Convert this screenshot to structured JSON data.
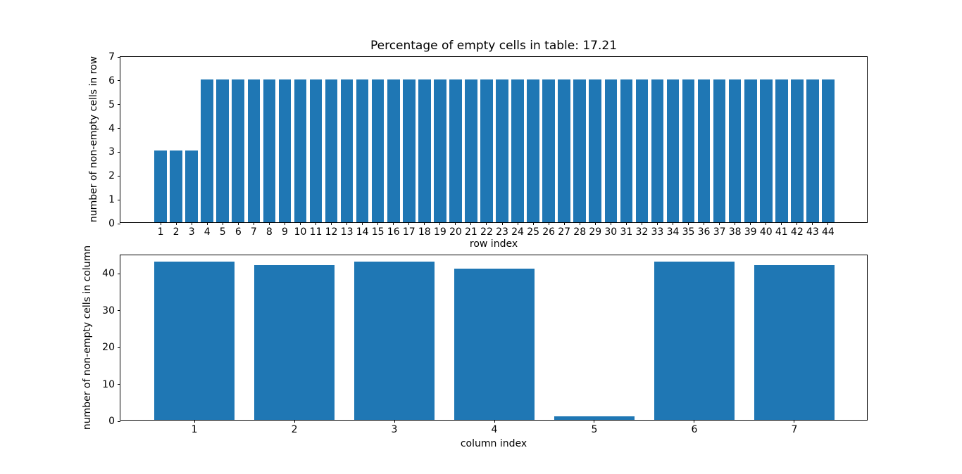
{
  "figure": {
    "background_color": "#ffffff",
    "bar_color": "#1f77b4",
    "axis_color": "#000000"
  },
  "chart_data": [
    {
      "type": "bar",
      "title": "Percentage of empty cells in table: 17.21",
      "xlabel": "row index",
      "ylabel": "number of non-empty cells in row",
      "categories": [
        1,
        2,
        3,
        4,
        5,
        6,
        7,
        8,
        9,
        10,
        11,
        12,
        13,
        14,
        15,
        16,
        17,
        18,
        19,
        20,
        21,
        22,
        23,
        24,
        25,
        26,
        27,
        28,
        29,
        30,
        31,
        32,
        33,
        34,
        35,
        36,
        37,
        38,
        39,
        40,
        41,
        42,
        43,
        44
      ],
      "values": [
        3,
        3,
        3,
        6,
        6,
        6,
        6,
        6,
        6,
        6,
        6,
        6,
        6,
        6,
        6,
        6,
        6,
        6,
        6,
        6,
        6,
        6,
        6,
        6,
        6,
        6,
        6,
        6,
        6,
        6,
        6,
        6,
        6,
        6,
        6,
        6,
        6,
        6,
        6,
        6,
        6,
        6,
        6,
        6
      ],
      "ylim": [
        0,
        7
      ],
      "yticks": [
        0,
        1,
        2,
        3,
        4,
        5,
        6,
        7
      ],
      "xlim": [
        -1.59,
        46.59
      ],
      "bar_width": 0.8,
      "grid": false,
      "legend_position": "none"
    },
    {
      "type": "bar",
      "title": "",
      "xlabel": "column index",
      "ylabel": "number of non-empty cells in column",
      "categories": [
        1,
        2,
        3,
        4,
        5,
        6,
        7
      ],
      "values": [
        43,
        42,
        43,
        41,
        1,
        43,
        42
      ],
      "ylim": [
        0,
        45
      ],
      "yticks": [
        0,
        10,
        20,
        30,
        40
      ],
      "xlim": [
        0.26,
        7.74
      ],
      "bar_width": 0.8,
      "grid": false,
      "legend_position": "none"
    }
  ]
}
